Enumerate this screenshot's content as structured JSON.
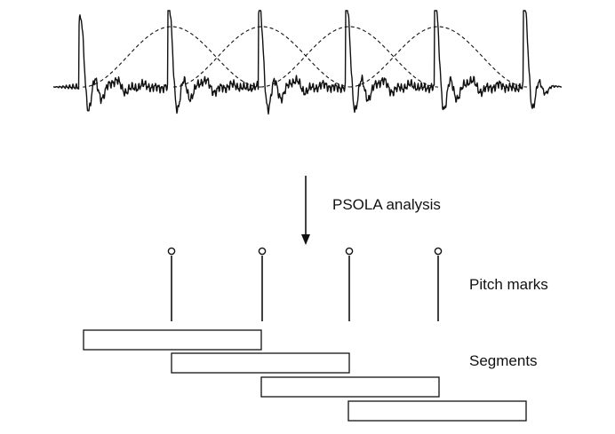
{
  "labels": {
    "analysis": "PSOLA analysis",
    "pitch_marks": "Pitch marks",
    "segments": "Segments"
  },
  "colors": {
    "ink": "#111111",
    "background": "#ffffff"
  },
  "pitch_mark_count": 4,
  "segment_count": 4,
  "window_count": 4
}
